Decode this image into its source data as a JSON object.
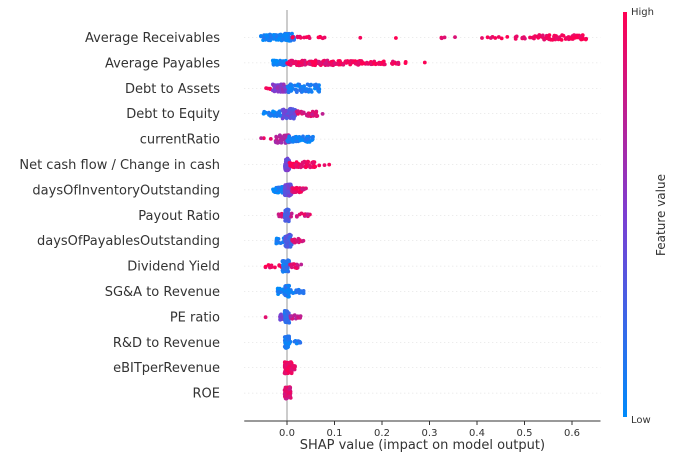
{
  "chart_data": {
    "type": "scatter",
    "title": "",
    "xlabel": "SHAP value (impact on model output)",
    "xlim": [
      -0.09,
      0.66
    ],
    "xticks": [
      "0.0",
      "0.1",
      "0.2",
      "0.3",
      "0.4",
      "0.5",
      "0.6"
    ],
    "xtick_values": [
      0.0,
      0.1,
      0.2,
      0.3,
      0.4,
      0.5,
      0.6
    ],
    "colorbar": {
      "title": "Feature value",
      "high_label": "High",
      "low_label": "Low",
      "high_color": "#ff0052",
      "low_color": "#008bfb"
    },
    "features": [
      {
        "name": "Average Receivables",
        "clusters": [
          {
            "lo": -0.055,
            "hi": 0.0,
            "n": 90,
            "f": 0.05,
            "j": 3
          },
          {
            "lo": -0.005,
            "hi": 0.015,
            "n": 40,
            "f": 0.1,
            "j": 4
          },
          {
            "lo": 0.01,
            "hi": 0.05,
            "n": 10,
            "f": 0.95,
            "j": 1
          },
          {
            "lo": 0.06,
            "hi": 0.08,
            "n": 5,
            "f": 0.95,
            "j": 1
          },
          {
            "lo": 0.15,
            "hi": 0.16,
            "n": 1,
            "f": 0.95,
            "j": 0.5
          },
          {
            "lo": 0.22,
            "hi": 0.23,
            "n": 1,
            "f": 0.95,
            "j": 0.5
          },
          {
            "lo": 0.32,
            "hi": 0.36,
            "n": 4,
            "f": 0.95,
            "j": 1
          },
          {
            "lo": 0.41,
            "hi": 0.47,
            "n": 8,
            "f": 0.95,
            "j": 1
          },
          {
            "lo": 0.48,
            "hi": 0.53,
            "n": 16,
            "f": 0.95,
            "j": 1.5
          },
          {
            "lo": 0.53,
            "hi": 0.63,
            "n": 60,
            "f": 0.95,
            "j": 2.5
          }
        ]
      },
      {
        "name": "Average Payables",
        "clusters": [
          {
            "lo": -0.03,
            "hi": 0.0,
            "n": 50,
            "f": 0.05,
            "j": 2.5
          },
          {
            "lo": 0.0,
            "hi": 0.1,
            "n": 110,
            "f": 0.92,
            "j": 2.5
          },
          {
            "lo": 0.1,
            "hi": 0.16,
            "n": 50,
            "f": 0.95,
            "j": 2
          },
          {
            "lo": 0.16,
            "hi": 0.25,
            "n": 35,
            "f": 0.95,
            "j": 1.5
          },
          {
            "lo": 0.29,
            "hi": 0.29,
            "n": 1,
            "f": 0.95,
            "j": 0.5
          }
        ]
      },
      {
        "name": "Debt to Assets",
        "clusters": [
          {
            "lo": -0.06,
            "hi": -0.03,
            "n": 4,
            "f": 0.95,
            "j": 1
          },
          {
            "lo": -0.03,
            "hi": 0.0,
            "n": 50,
            "f": 0.55,
            "j": 4
          },
          {
            "lo": 0.0,
            "hi": 0.07,
            "n": 60,
            "f": 0.1,
            "j": 4
          }
        ]
      },
      {
        "name": "Debt to Equity",
        "clusters": [
          {
            "lo": -0.05,
            "hi": -0.01,
            "n": 30,
            "f": 0.05,
            "j": 2.5
          },
          {
            "lo": -0.01,
            "hi": 0.02,
            "n": 60,
            "f": 0.4,
            "j": 5
          },
          {
            "lo": 0.02,
            "hi": 0.075,
            "n": 30,
            "f": 0.85,
            "j": 2.5
          }
        ]
      },
      {
        "name": "currentRatio",
        "clusters": [
          {
            "lo": -0.06,
            "hi": -0.03,
            "n": 3,
            "f": 0.85,
            "j": 1
          },
          {
            "lo": -0.025,
            "hi": 0.005,
            "n": 40,
            "f": 0.7,
            "j": 4
          },
          {
            "lo": 0.0,
            "hi": 0.055,
            "n": 50,
            "f": 0.05,
            "j": 3
          }
        ]
      },
      {
        "name": "Net cash flow / Change in cash",
        "clusters": [
          {
            "lo": -0.005,
            "hi": 0.005,
            "n": 60,
            "f": 0.45,
            "j": 6
          },
          {
            "lo": 0.005,
            "hi": 0.06,
            "n": 50,
            "f": 0.95,
            "j": 3
          },
          {
            "lo": 0.06,
            "hi": 0.09,
            "n": 3,
            "f": 0.95,
            "j": 1
          }
        ]
      },
      {
        "name": "daysOfInventoryOutstanding",
        "clusters": [
          {
            "lo": -0.03,
            "hi": 0.0,
            "n": 40,
            "f": 0.05,
            "j": 3
          },
          {
            "lo": -0.005,
            "hi": 0.01,
            "n": 60,
            "f": 0.45,
            "j": 6
          },
          {
            "lo": 0.01,
            "hi": 0.04,
            "n": 30,
            "f": 0.9,
            "j": 2.5
          }
        ]
      },
      {
        "name": "Payout Ratio",
        "clusters": [
          {
            "lo": -0.02,
            "hi": -0.005,
            "n": 6,
            "f": 0.85,
            "j": 2
          },
          {
            "lo": -0.005,
            "hi": 0.005,
            "n": 50,
            "f": 0.3,
            "j": 6
          },
          {
            "lo": 0.005,
            "hi": 0.05,
            "n": 12,
            "f": 0.85,
            "j": 2
          }
        ]
      },
      {
        "name": "daysOfPayablesOutstanding",
        "clusters": [
          {
            "lo": -0.025,
            "hi": 0.0,
            "n": 20,
            "f": 0.05,
            "j": 3
          },
          {
            "lo": -0.005,
            "hi": 0.01,
            "n": 60,
            "f": 0.3,
            "j": 6
          },
          {
            "lo": 0.01,
            "hi": 0.035,
            "n": 15,
            "f": 0.85,
            "j": 2
          }
        ]
      },
      {
        "name": "Dividend Yield",
        "clusters": [
          {
            "lo": -0.055,
            "hi": -0.01,
            "n": 10,
            "f": 0.95,
            "j": 1.5
          },
          {
            "lo": -0.01,
            "hi": 0.005,
            "n": 60,
            "f": 0.15,
            "j": 6
          },
          {
            "lo": 0.005,
            "hi": 0.03,
            "n": 15,
            "f": 0.85,
            "j": 2
          }
        ]
      },
      {
        "name": "SG&A to Revenue",
        "clusters": [
          {
            "lo": -0.02,
            "hi": 0.0,
            "n": 20,
            "f": 0.05,
            "j": 3
          },
          {
            "lo": -0.005,
            "hi": 0.005,
            "n": 60,
            "f": 0.1,
            "j": 6
          },
          {
            "lo": 0.0,
            "hi": 0.035,
            "n": 20,
            "f": 0.08,
            "j": 2
          }
        ]
      },
      {
        "name": "PE ratio",
        "clusters": [
          {
            "lo": -0.045,
            "hi": -0.045,
            "n": 1,
            "f": 0.95,
            "j": 0.5
          },
          {
            "lo": -0.015,
            "hi": 0.0,
            "n": 15,
            "f": 0.5,
            "j": 3
          },
          {
            "lo": -0.005,
            "hi": 0.005,
            "n": 50,
            "f": 0.2,
            "j": 6
          },
          {
            "lo": 0.005,
            "hi": 0.03,
            "n": 15,
            "f": 0.75,
            "j": 2
          }
        ]
      },
      {
        "name": "R&D to Revenue",
        "clusters": [
          {
            "lo": -0.005,
            "hi": 0.005,
            "n": 60,
            "f": 0.1,
            "j": 6
          },
          {
            "lo": 0.005,
            "hi": 0.03,
            "n": 10,
            "f": 0.1,
            "j": 1.5
          }
        ]
      },
      {
        "name": "eBITperRevenue",
        "clusters": [
          {
            "lo": -0.005,
            "hi": 0.01,
            "n": 60,
            "f": 0.9,
            "j": 6
          },
          {
            "lo": 0.0,
            "hi": 0.02,
            "n": 15,
            "f": 0.9,
            "j": 2
          }
        ]
      },
      {
        "name": "ROE",
        "clusters": [
          {
            "lo": -0.005,
            "hi": 0.008,
            "n": 70,
            "f": 0.85,
            "j": 6
          }
        ]
      }
    ]
  }
}
